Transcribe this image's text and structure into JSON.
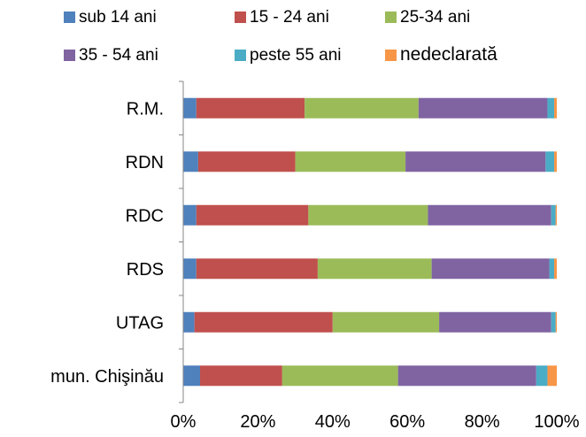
{
  "chart_data": {
    "type": "bar",
    "orientation": "horizontal",
    "stacked": "percent",
    "categories": [
      "R.M.",
      "RDN",
      "RDC",
      "RDS",
      "UTAG",
      "mun. Chişinău"
    ],
    "series": [
      {
        "name": "sub 14 ani",
        "color": "#4F81BD",
        "values": [
          3.5,
          4.0,
          3.5,
          3.5,
          3.0,
          4.5
        ]
      },
      {
        "name": "15 - 24 ani",
        "color": "#C0504D",
        "values": [
          29.0,
          26.0,
          30.0,
          32.5,
          37.0,
          22.0
        ]
      },
      {
        "name": "25-34 ani",
        "color": "#9BBB59",
        "values": [
          30.5,
          29.5,
          32.0,
          30.5,
          28.5,
          31.0
        ]
      },
      {
        "name": "35 - 54 ani",
        "color": "#8064A2",
        "values": [
          34.5,
          37.5,
          33.0,
          31.5,
          30.0,
          37.0
        ]
      },
      {
        "name": "peste 55 ani",
        "color": "#4BACC6",
        "values": [
          1.8,
          2.3,
          1.2,
          1.3,
          1.2,
          3.0
        ]
      },
      {
        "name": "nedeclarată",
        "color": "#F79646",
        "values": [
          0.7,
          0.7,
          0.3,
          0.7,
          0.3,
          2.5
        ]
      }
    ],
    "xlim": [
      0,
      100
    ],
    "xticks": [
      "0%",
      "20%",
      "40%",
      "60%",
      "80%",
      "100%"
    ],
    "grid": false,
    "legend_position": "top"
  }
}
